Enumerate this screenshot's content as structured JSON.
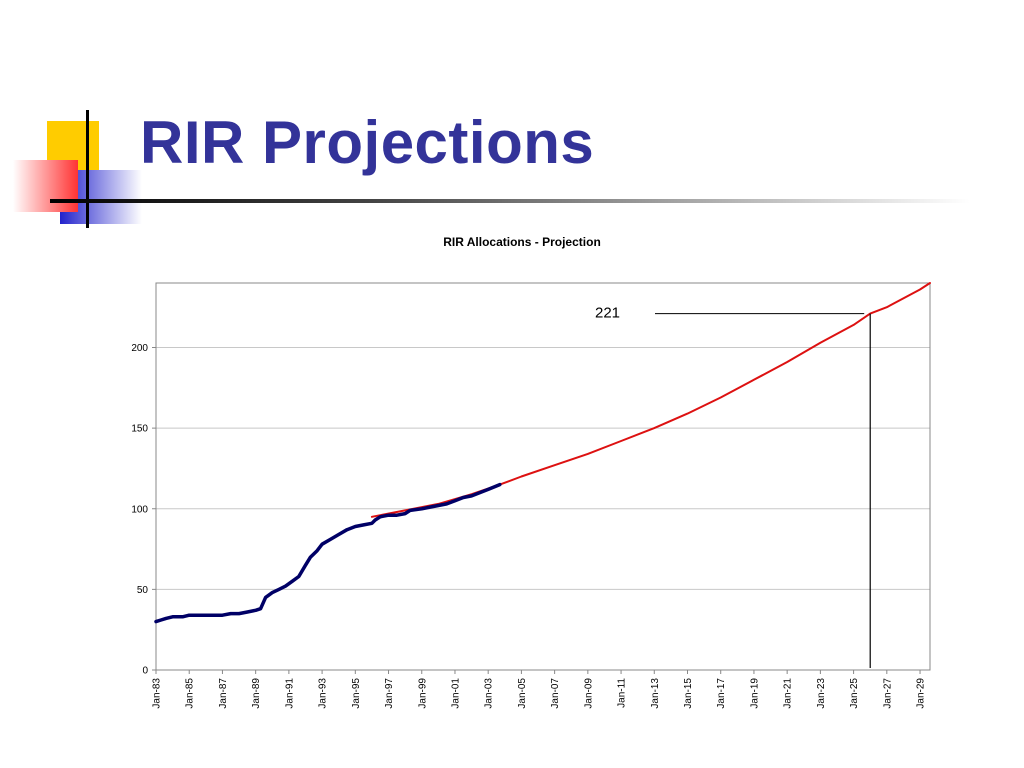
{
  "slide": {
    "title": "RIR Projections"
  },
  "colors": {
    "title": "#333399",
    "actual": "#000066",
    "projection": "#dd1111",
    "deco_yellow": "#ffcc00",
    "deco_blue": "#3333cc",
    "deco_red": "#ff3333"
  },
  "chart_data": {
    "type": "line",
    "title": "RIR Allocations - Projection",
    "xlabel": "",
    "ylabel": "",
    "x_unit": "year",
    "xlim": [
      1983.0,
      2029.6
    ],
    "ylim": [
      0,
      240
    ],
    "y_ticks": [
      0,
      50,
      100,
      150,
      200
    ],
    "x_ticks": [
      {
        "x": 1983,
        "label": "Jan-83"
      },
      {
        "x": 1985,
        "label": "Jan-85"
      },
      {
        "x": 1987,
        "label": "Jan-87"
      },
      {
        "x": 1989,
        "label": "Jan-89"
      },
      {
        "x": 1991,
        "label": "Jan-91"
      },
      {
        "x": 1993,
        "label": "Jan-93"
      },
      {
        "x": 1995,
        "label": "Jan-95"
      },
      {
        "x": 1997,
        "label": "Jan-97"
      },
      {
        "x": 1999,
        "label": "Jan-99"
      },
      {
        "x": 2001,
        "label": "Jan-01"
      },
      {
        "x": 2003,
        "label": "Jan-03"
      },
      {
        "x": 2005,
        "label": "Jan-05"
      },
      {
        "x": 2007,
        "label": "Jan-07"
      },
      {
        "x": 2009,
        "label": "Jan-09"
      },
      {
        "x": 2011,
        "label": "Jan-11"
      },
      {
        "x": 2013,
        "label": "Jan-13"
      },
      {
        "x": 2015,
        "label": "Jan-15"
      },
      {
        "x": 2017,
        "label": "Jan-17"
      },
      {
        "x": 2019,
        "label": "Jan-19"
      },
      {
        "x": 2021,
        "label": "Jan-21"
      },
      {
        "x": 2023,
        "label": "Jan-23"
      },
      {
        "x": 2025,
        "label": "Jan-25"
      },
      {
        "x": 2027,
        "label": "Jan-27"
      },
      {
        "x": 2029,
        "label": "Jan-29"
      }
    ],
    "grid": true,
    "legend": "none",
    "series": [
      {
        "role": "projection",
        "x": [
          1996,
          1998,
          2000,
          2002,
          2003.7,
          2005,
          2007,
          2009,
          2011,
          2013,
          2015,
          2017,
          2019,
          2021,
          2023,
          2025,
          2026.0,
          2027,
          2029,
          2029.6
        ],
        "y": [
          95,
          99,
          103,
          109,
          115,
          120,
          127,
          134,
          142,
          150,
          159,
          169,
          180,
          191,
          203,
          214,
          221,
          225,
          236,
          240
        ]
      },
      {
        "role": "actual",
        "x": [
          1983.0,
          1983.3,
          1983.6,
          1984.0,
          1984.6,
          1985.0,
          1985.5,
          1986.0,
          1986.5,
          1987.0,
          1987.5,
          1988.0,
          1988.5,
          1989.0,
          1989.3,
          1989.6,
          1990.0,
          1990.4,
          1990.8,
          1991.2,
          1991.6,
          1992.0,
          1992.3,
          1992.7,
          1993.0,
          1993.5,
          1994.0,
          1994.5,
          1995.0,
          1995.5,
          1996.0,
          1996.2,
          1996.5,
          1997.0,
          1997.5,
          1998.0,
          1998.3,
          1999.0,
          1999.5,
          2000.0,
          2000.5,
          2001.0,
          2001.5,
          2002.0,
          2002.5,
          2003.0,
          2003.7
        ],
        "y": [
          30,
          31,
          32,
          33,
          33,
          34,
          34,
          34,
          34,
          34,
          35,
          35,
          36,
          37,
          38,
          45,
          48,
          50,
          52,
          55,
          58,
          65,
          70,
          74,
          78,
          81,
          84,
          87,
          89,
          90,
          91,
          93,
          95,
          96,
          96,
          97,
          99,
          100,
          101,
          102,
          103,
          105,
          107,
          108,
          110,
          112,
          115
        ]
      }
    ],
    "annotation": {
      "label": "221",
      "x": 2026.0,
      "y": 221
    }
  }
}
